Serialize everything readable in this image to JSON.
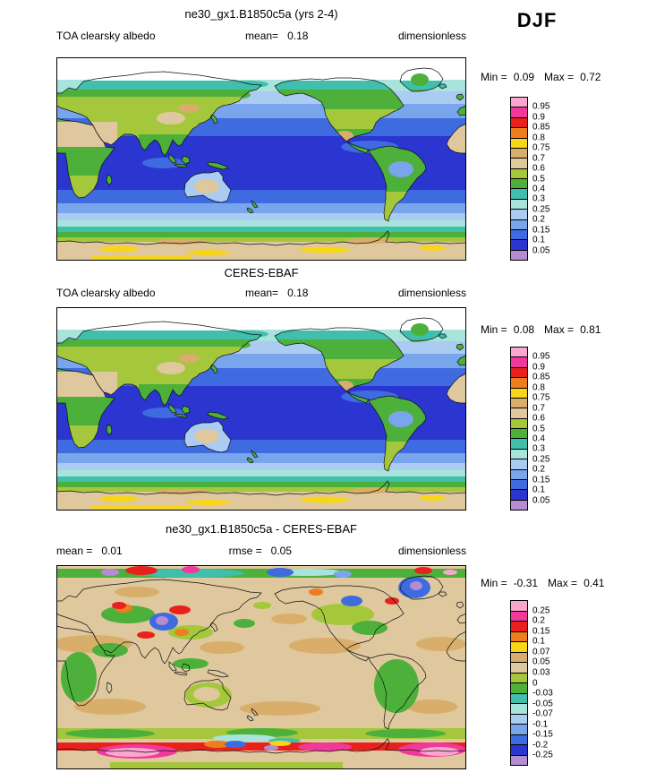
{
  "season": "DJF",
  "palette": [
    "#F9A7CF",
    "#F2399B",
    "#E8211D",
    "#EE7D1E",
    "#F7D518",
    "#D9AE6A",
    "#DFC89E",
    "#A4C73C",
    "#4DB03A",
    "#3FBFAC",
    "#A8E4DC",
    "#AACBF2",
    "#79A5EC",
    "#3F6BE0",
    "#2B35CF",
    "#B48CD2"
  ],
  "panels": [
    {
      "title": "ne30_gx1.B1850c5a (yrs 2-4)",
      "header": {
        "left": "TOA clearsky albedo",
        "center_label": "mean=",
        "center_value": "0.18",
        "right": "dimensionless"
      },
      "minmax": {
        "min_label": "Min =",
        "min": "0.09",
        "max_label": "Max =",
        "max": "0.72"
      },
      "colorbar_labels": [
        "0.95",
        "0.9",
        "0.85",
        "0.8",
        "0.75",
        "0.7",
        "0.6",
        "0.5",
        "0.4",
        "0.3",
        "0.25",
        "0.2",
        "0.15",
        "0.1",
        "0.05"
      ]
    },
    {
      "title": "CERES-EBAF",
      "header": {
        "left": "TOA clearsky albedo",
        "center_label": "mean=",
        "center_value": "0.18",
        "right": "dimensionless"
      },
      "minmax": {
        "min_label": "Min =",
        "min": "0.08",
        "max_label": "Max =",
        "max": "0.81"
      },
      "colorbar_labels": [
        "0.95",
        "0.9",
        "0.85",
        "0.8",
        "0.75",
        "0.7",
        "0.6",
        "0.5",
        "0.4",
        "0.3",
        "0.25",
        "0.2",
        "0.15",
        "0.1",
        "0.05"
      ]
    },
    {
      "title": "ne30_gx1.B1850c5a - CERES-EBAF",
      "header": {
        "left_label": "mean =",
        "left_value": "0.01",
        "center_label": "rmse =",
        "center_value": "0.05",
        "right": "dimensionless"
      },
      "minmax": {
        "min_label": "Min =",
        "min": "-0.31",
        "max_label": "Max =",
        "max": "0.41"
      },
      "colorbar_labels": [
        "0.25",
        "0.2",
        "0.15",
        "0.1",
        "0.07",
        "0.05",
        "0.03",
        "0",
        "-0.03",
        "-0.05",
        "-0.07",
        "-0.1",
        "-0.15",
        "-0.2",
        "-0.25"
      ]
    }
  ],
  "chart_data": [
    {
      "type": "heatmap",
      "subtype": "global filled-contour map",
      "title": "ne30_gx1.B1850c5a (yrs 2-4)",
      "variable": "TOA clearsky albedo",
      "season": "DJF",
      "units": "dimensionless",
      "stats": {
        "mean": 0.18,
        "min": 0.09,
        "max": 0.72
      },
      "contour_levels": [
        0.05,
        0.1,
        0.15,
        0.2,
        0.25,
        0.3,
        0.4,
        0.5,
        0.6,
        0.7,
        0.75,
        0.8,
        0.85,
        0.9,
        0.95
      ],
      "legend_position": "right"
    },
    {
      "type": "heatmap",
      "subtype": "global filled-contour map",
      "title": "CERES-EBAF",
      "variable": "TOA clearsky albedo",
      "season": "DJF",
      "units": "dimensionless",
      "stats": {
        "mean": 0.18,
        "min": 0.08,
        "max": 0.81
      },
      "contour_levels": [
        0.05,
        0.1,
        0.15,
        0.2,
        0.25,
        0.3,
        0.4,
        0.5,
        0.6,
        0.7,
        0.75,
        0.8,
        0.85,
        0.9,
        0.95
      ],
      "legend_position": "right"
    },
    {
      "type": "heatmap",
      "subtype": "global filled-contour difference map",
      "title": "ne30_gx1.B1850c5a - CERES-EBAF",
      "season": "DJF",
      "units": "dimensionless",
      "stats": {
        "mean": 0.01,
        "rmse": 0.05,
        "min": -0.31,
        "max": 0.41
      },
      "contour_levels": [
        -0.25,
        -0.2,
        -0.15,
        -0.1,
        -0.07,
        -0.05,
        -0.03,
        0,
        0.03,
        0.05,
        0.07,
        0.1,
        0.15,
        0.2,
        0.25
      ],
      "legend_position": "right"
    }
  ]
}
